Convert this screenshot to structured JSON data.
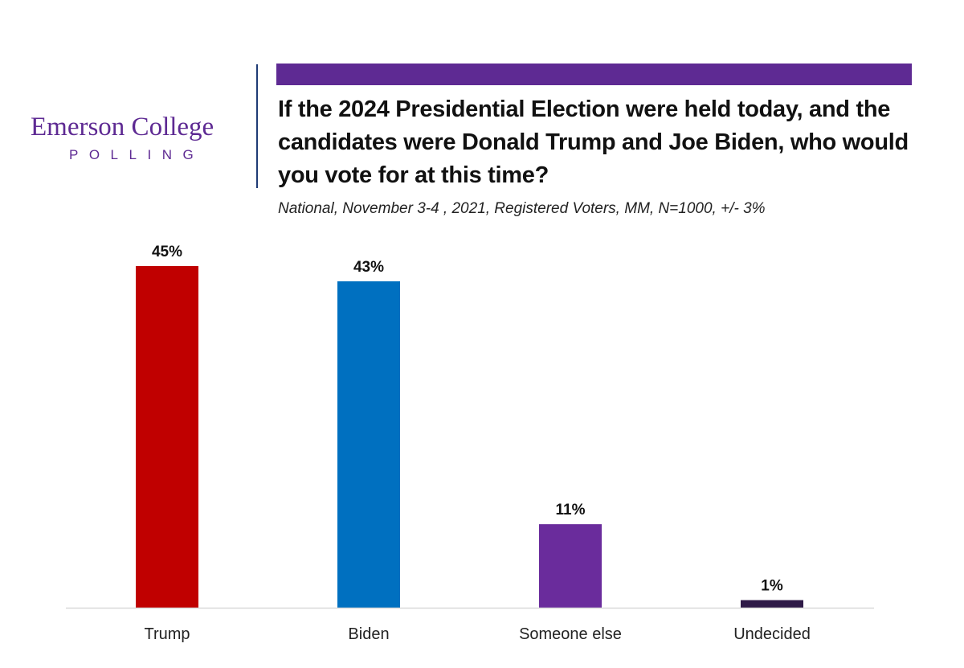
{
  "brand": {
    "name": "Emerson College",
    "sub": "POLLING",
    "color": "#5e2a93"
  },
  "accent_color": "#5e2a93",
  "chart_data": {
    "type": "bar",
    "title": "If the 2024 Presidential Election were held today, and the candidates were Donald Trump and Joe Biden, who would you vote for at this time?",
    "subtitle": "National, November 3-4 , 2021, Registered Voters, MM, N=1000, +/- 3%",
    "categories": [
      "Trump",
      "Biden",
      "Someone else",
      "Undecided"
    ],
    "values": [
      45,
      43,
      11,
      1
    ],
    "data_labels": [
      "45%",
      "43%",
      "11%",
      "1%"
    ],
    "colors": [
      "#c00000",
      "#0070c0",
      "#6a2c9c",
      "#2e1a47"
    ],
    "ylim": [
      0,
      45
    ],
    "grid": false,
    "legend": "none"
  }
}
